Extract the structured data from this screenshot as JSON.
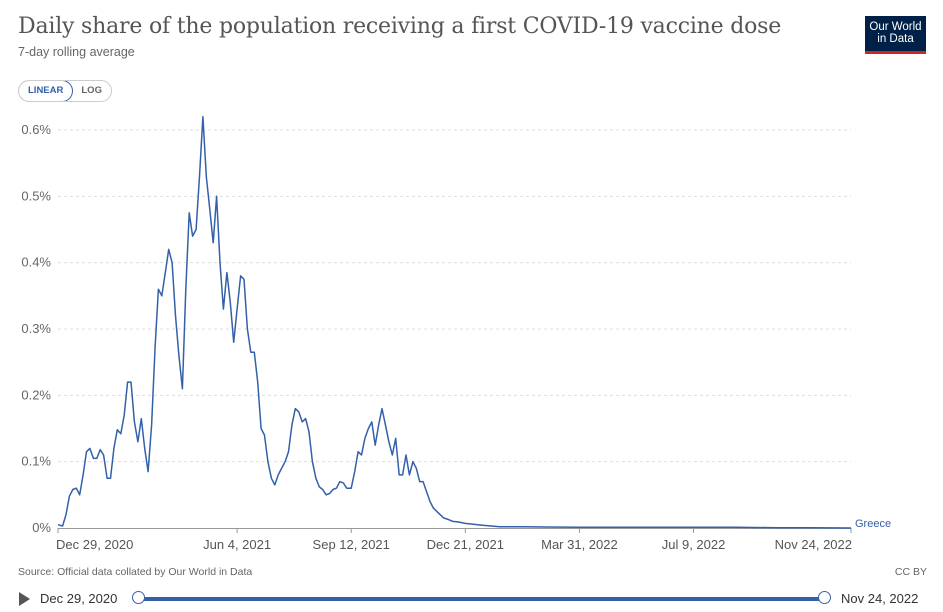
{
  "header": {
    "title": "Daily share of the population receiving a first COVID-19 vaccine dose",
    "subtitle": "7-day rolling average",
    "logo_line1": "Our World",
    "logo_line2": "in Data"
  },
  "scale_toggle": {
    "linear_label": "LINEAR",
    "log_label": "LOG",
    "selected": "LINEAR"
  },
  "footer": {
    "source": "Source: Official data collated by Our World in Data",
    "license": "CC BY"
  },
  "timeline": {
    "start_label": "Dec 29, 2020",
    "end_label": "Nov 24, 2022"
  },
  "colors": {
    "series": "#3360a9",
    "grid": "#dddddd",
    "axis": "#999999",
    "brand": "#002147",
    "brand_accent": "#ce261e"
  },
  "chart_data": {
    "type": "line",
    "title": "Daily share of the population receiving a first COVID-19 vaccine dose",
    "subtitle": "7-day rolling average",
    "x_range": [
      "2020-12-29",
      "2022-11-24"
    ],
    "ylim": [
      0,
      0.6
    ],
    "y_unit": "%",
    "grid": "horizontal dashed",
    "y_ticks": [
      0,
      0.1,
      0.2,
      0.3,
      0.4,
      0.5,
      0.6
    ],
    "y_tick_labels": [
      "0%",
      "0.1%",
      "0.2%",
      "0.3%",
      "0.4%",
      "0.5%",
      "0.6%"
    ],
    "x_ticks": [
      "2020-12-29",
      "2021-06-04",
      "2021-09-12",
      "2021-12-21",
      "2022-03-31",
      "2022-07-09",
      "2022-11-24"
    ],
    "x_tick_labels": [
      "Dec 29, 2020",
      "Jun 4, 2021",
      "Sep 12, 2021",
      "Dec 21, 2021",
      "Mar 31, 2022",
      "Jul 9, 2022",
      "Nov 24, 2022"
    ],
    "series": [
      {
        "name": "Greece",
        "color": "#3360a9",
        "points": [
          [
            "2020-12-29",
            0.005
          ],
          [
            "2021-01-02",
            0.003
          ],
          [
            "2021-01-05",
            0.02
          ],
          [
            "2021-01-08",
            0.048
          ],
          [
            "2021-01-11",
            0.058
          ],
          [
            "2021-01-14",
            0.06
          ],
          [
            "2021-01-17",
            0.05
          ],
          [
            "2021-01-20",
            0.08
          ],
          [
            "2021-01-23",
            0.115
          ],
          [
            "2021-01-26",
            0.12
          ],
          [
            "2021-01-29",
            0.105
          ],
          [
            "2021-02-01",
            0.105
          ],
          [
            "2021-02-04",
            0.118
          ],
          [
            "2021-02-07",
            0.11
          ],
          [
            "2021-02-10",
            0.075
          ],
          [
            "2021-02-13",
            0.075
          ],
          [
            "2021-02-16",
            0.12
          ],
          [
            "2021-02-19",
            0.148
          ],
          [
            "2021-02-22",
            0.142
          ],
          [
            "2021-02-25",
            0.17
          ],
          [
            "2021-02-28",
            0.22
          ],
          [
            "2021-03-03",
            0.22
          ],
          [
            "2021-03-06",
            0.16
          ],
          [
            "2021-03-09",
            0.13
          ],
          [
            "2021-03-12",
            0.165
          ],
          [
            "2021-03-15",
            0.12
          ],
          [
            "2021-03-18",
            0.085
          ],
          [
            "2021-03-21",
            0.155
          ],
          [
            "2021-03-24",
            0.27
          ],
          [
            "2021-03-27",
            0.36
          ],
          [
            "2021-03-30",
            0.35
          ],
          [
            "2021-04-02",
            0.385
          ],
          [
            "2021-04-05",
            0.42
          ],
          [
            "2021-04-08",
            0.4
          ],
          [
            "2021-04-11",
            0.32
          ],
          [
            "2021-04-14",
            0.26
          ],
          [
            "2021-04-17",
            0.21
          ],
          [
            "2021-04-20",
            0.36
          ],
          [
            "2021-04-23",
            0.475
          ],
          [
            "2021-04-26",
            0.44
          ],
          [
            "2021-04-29",
            0.45
          ],
          [
            "2021-05-02",
            0.53
          ],
          [
            "2021-05-05",
            0.62
          ],
          [
            "2021-05-08",
            0.53
          ],
          [
            "2021-05-11",
            0.48
          ],
          [
            "2021-05-14",
            0.43
          ],
          [
            "2021-05-17",
            0.5
          ],
          [
            "2021-05-20",
            0.4
          ],
          [
            "2021-05-23",
            0.33
          ],
          [
            "2021-05-26",
            0.385
          ],
          [
            "2021-05-29",
            0.34
          ],
          [
            "2021-06-01",
            0.28
          ],
          [
            "2021-06-04",
            0.33
          ],
          [
            "2021-06-07",
            0.38
          ],
          [
            "2021-06-10",
            0.375
          ],
          [
            "2021-06-13",
            0.3
          ],
          [
            "2021-06-16",
            0.265
          ],
          [
            "2021-06-19",
            0.265
          ],
          [
            "2021-06-22",
            0.22
          ],
          [
            "2021-06-25",
            0.15
          ],
          [
            "2021-06-28",
            0.14
          ],
          [
            "2021-07-01",
            0.1
          ],
          [
            "2021-07-04",
            0.075
          ],
          [
            "2021-07-07",
            0.065
          ],
          [
            "2021-07-10",
            0.08
          ],
          [
            "2021-07-13",
            0.09
          ],
          [
            "2021-07-16",
            0.1
          ],
          [
            "2021-07-19",
            0.115
          ],
          [
            "2021-07-22",
            0.155
          ],
          [
            "2021-07-25",
            0.18
          ],
          [
            "2021-07-28",
            0.175
          ],
          [
            "2021-07-31",
            0.16
          ],
          [
            "2021-08-03",
            0.165
          ],
          [
            "2021-08-06",
            0.145
          ],
          [
            "2021-08-09",
            0.1
          ],
          [
            "2021-08-12",
            0.075
          ],
          [
            "2021-08-15",
            0.062
          ],
          [
            "2021-08-18",
            0.058
          ],
          [
            "2021-08-21",
            0.05
          ],
          [
            "2021-08-24",
            0.052
          ],
          [
            "2021-08-27",
            0.058
          ],
          [
            "2021-08-30",
            0.06
          ],
          [
            "2021-09-02",
            0.07
          ],
          [
            "2021-09-05",
            0.068
          ],
          [
            "2021-09-08",
            0.06
          ],
          [
            "2021-09-12",
            0.06
          ],
          [
            "2021-09-15",
            0.085
          ],
          [
            "2021-09-18",
            0.115
          ],
          [
            "2021-09-21",
            0.11
          ],
          [
            "2021-09-24",
            0.135
          ],
          [
            "2021-09-27",
            0.15
          ],
          [
            "2021-09-30",
            0.16
          ],
          [
            "2021-10-03",
            0.125
          ],
          [
            "2021-10-06",
            0.155
          ],
          [
            "2021-10-09",
            0.18
          ],
          [
            "2021-10-12",
            0.155
          ],
          [
            "2021-10-15",
            0.13
          ],
          [
            "2021-10-18",
            0.11
          ],
          [
            "2021-10-21",
            0.135
          ],
          [
            "2021-10-24",
            0.08
          ],
          [
            "2021-10-27",
            0.08
          ],
          [
            "2021-10-30",
            0.11
          ],
          [
            "2021-11-02",
            0.08
          ],
          [
            "2021-11-05",
            0.1
          ],
          [
            "2021-11-08",
            0.09
          ],
          [
            "2021-11-11",
            0.07
          ],
          [
            "2021-11-14",
            0.07
          ],
          [
            "2021-11-17",
            0.055
          ],
          [
            "2021-11-20",
            0.04
          ],
          [
            "2021-11-23",
            0.03
          ],
          [
            "2021-11-26",
            0.025
          ],
          [
            "2021-11-29",
            0.02
          ],
          [
            "2021-12-02",
            0.015
          ],
          [
            "2021-12-06",
            0.013
          ],
          [
            "2021-12-10",
            0.01
          ],
          [
            "2021-12-15",
            0.009
          ],
          [
            "2021-12-21",
            0.007
          ],
          [
            "2022-01-05",
            0.004
          ],
          [
            "2022-01-20",
            0.002
          ],
          [
            "2022-02-10",
            0.002
          ],
          [
            "2022-03-01",
            0.0015
          ],
          [
            "2022-03-31",
            0.001
          ],
          [
            "2022-05-01",
            0.001
          ],
          [
            "2022-06-01",
            0.001
          ],
          [
            "2022-07-09",
            0.001
          ],
          [
            "2022-08-15",
            0.001
          ],
          [
            "2022-09-20",
            0.0005
          ],
          [
            "2022-10-20",
            0.0005
          ],
          [
            "2022-11-24",
            0.0
          ]
        ]
      }
    ]
  }
}
